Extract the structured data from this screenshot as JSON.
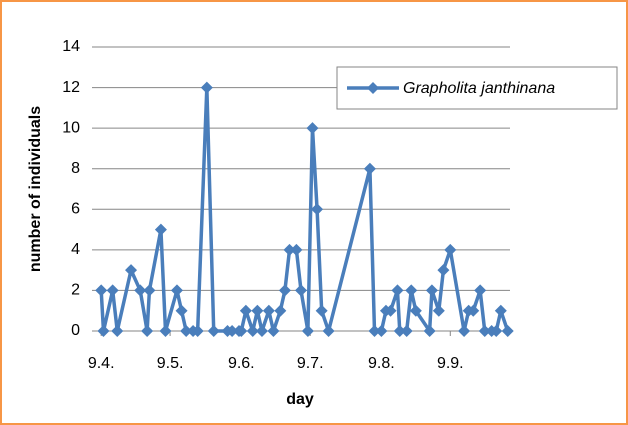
{
  "chart_data": {
    "type": "line",
    "x_label": "day",
    "y_label": "number of individuals",
    "x": [
      0,
      1,
      5,
      7,
      13,
      17,
      20,
      21,
      26,
      28,
      33,
      35,
      37,
      40,
      42,
      46,
      49,
      55,
      57,
      60,
      61,
      63,
      66,
      68,
      70,
      73,
      75,
      78,
      80,
      82,
      85,
      87,
      90,
      92,
      94,
      96,
      99,
      117,
      119,
      122,
      124,
      126,
      129,
      130,
      133,
      135,
      137,
      143,
      144,
      147,
      149,
      152,
      158,
      160,
      162,
      165,
      167,
      170,
      172,
      174,
      177
    ],
    "series": [
      {
        "name": "Grapholita janthinana",
        "color": "#4a7ebb",
        "values": [
          2,
          0,
          2,
          0,
          3,
          2,
          0,
          2,
          5,
          0,
          2,
          1,
          0,
          0,
          0,
          12,
          0,
          0,
          0,
          0,
          0,
          1,
          0,
          1,
          0,
          1,
          0,
          1,
          2,
          4,
          4,
          2,
          0,
          10,
          6,
          1,
          0,
          8,
          0,
          0,
          1,
          1,
          2,
          0,
          0,
          2,
          1,
          0,
          2,
          1,
          3,
          4,
          0,
          1,
          1,
          2,
          0,
          0,
          0,
          1,
          0
        ]
      }
    ],
    "xlim": [
      -4,
      178
    ],
    "xticks": [
      {
        "value": 0,
        "label": "9.4."
      },
      {
        "value": 30,
        "label": "9.5."
      },
      {
        "value": 61,
        "label": "9.6."
      },
      {
        "value": 91,
        "label": "9.7."
      },
      {
        "value": 122,
        "label": "9.8."
      },
      {
        "value": 152,
        "label": "9.9."
      }
    ],
    "ylim": [
      0,
      14
    ],
    "yticks": [
      0,
      2,
      4,
      6,
      8,
      10,
      12,
      14
    ],
    "grid": true,
    "legend": "upper right"
  }
}
